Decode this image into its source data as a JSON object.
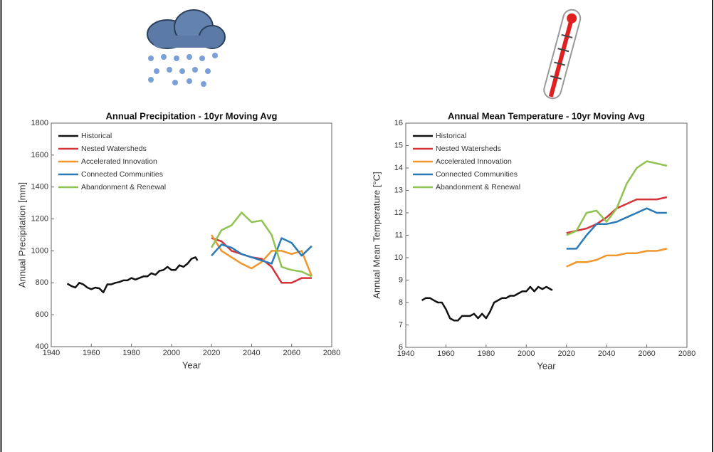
{
  "chart_data": [
    {
      "type": "line",
      "title": "Annual Precipitation - 10yr Moving Avg",
      "x_label": "Year",
      "y_label": "Annual Precipitation [mm]",
      "xlim": [
        1940,
        2080
      ],
      "xticks": [
        1940,
        1960,
        1980,
        2000,
        2020,
        2040,
        2060,
        2080
      ],
      "ylim": [
        400,
        1800
      ],
      "yticks": [
        400,
        600,
        800,
        1000,
        1200,
        1400,
        1600,
        1800
      ],
      "legend": "upper-left",
      "series": [
        {
          "name": "Historical",
          "color": "#111111",
          "x": [
            1948,
            1950,
            1952,
            1954,
            1956,
            1958,
            1960,
            1962,
            1964,
            1966,
            1968,
            1970,
            1972,
            1974,
            1976,
            1978,
            1980,
            1982,
            1984,
            1986,
            1988,
            1990,
            1992,
            1994,
            1996,
            1998,
            2000,
            2002,
            2004,
            2006,
            2008,
            2010,
            2012,
            2013
          ],
          "values": [
            795,
            780,
            770,
            800,
            790,
            770,
            760,
            770,
            765,
            740,
            790,
            790,
            800,
            805,
            815,
            815,
            830,
            820,
            830,
            840,
            840,
            860,
            850,
            875,
            880,
            900,
            880,
            880,
            910,
            900,
            920,
            950,
            960,
            940
          ]
        },
        {
          "name": "Nested Watersheds",
          "color": "#d6323a",
          "x": [
            2020,
            2025,
            2030,
            2035,
            2040,
            2045,
            2050,
            2055,
            2060,
            2065,
            2070
          ],
          "values": [
            1080,
            1060,
            1000,
            980,
            960,
            950,
            900,
            800,
            800,
            830,
            830
          ]
        },
        {
          "name": "Accelerated Innovation",
          "color": "#f0962a",
          "x": [
            2020,
            2025,
            2030,
            2035,
            2040,
            2045,
            2050,
            2055,
            2060,
            2065,
            2070
          ],
          "values": [
            1100,
            1000,
            960,
            920,
            890,
            930,
            1000,
            1000,
            980,
            1000,
            840
          ]
        },
        {
          "name": "Connected Communities",
          "color": "#2a7bb8",
          "x": [
            2020,
            2025,
            2030,
            2035,
            2040,
            2045,
            2050,
            2055,
            2060,
            2065,
            2070
          ],
          "values": [
            970,
            1040,
            1020,
            980,
            960,
            940,
            920,
            1080,
            1050,
            970,
            1030
          ]
        },
        {
          "name": "Abandonment & Renewal",
          "color": "#8fc250",
          "x": [
            2020,
            2025,
            2030,
            2035,
            2040,
            2045,
            2050,
            2055,
            2060,
            2065,
            2070
          ],
          "values": [
            1020,
            1130,
            1160,
            1240,
            1180,
            1190,
            1100,
            900,
            880,
            870,
            840
          ]
        }
      ]
    },
    {
      "type": "line",
      "title": "Annual Mean Temperature - 10yr Moving Avg",
      "x_label": "Year",
      "y_label": "Annual Mean Temperature [°C]",
      "xlim": [
        1940,
        2080
      ],
      "xticks": [
        1940,
        1960,
        1980,
        2000,
        2020,
        2040,
        2060,
        2080
      ],
      "ylim": [
        6,
        16
      ],
      "yticks": [
        6,
        7,
        8,
        9,
        10,
        11,
        12,
        13,
        14,
        15,
        16
      ],
      "legend": "upper-left",
      "series": [
        {
          "name": "Historical",
          "color": "#111111",
          "x": [
            1948,
            1950,
            1952,
            1954,
            1956,
            1958,
            1960,
            1962,
            1964,
            1966,
            1968,
            1970,
            1972,
            1974,
            1976,
            1978,
            1980,
            1982,
            1984,
            1986,
            1988,
            1990,
            1992,
            1994,
            1996,
            1998,
            2000,
            2002,
            2004,
            2006,
            2008,
            2010,
            2012,
            2013
          ],
          "values": [
            8.1,
            8.2,
            8.2,
            8.1,
            8.0,
            8.0,
            7.7,
            7.3,
            7.2,
            7.2,
            7.4,
            7.4,
            7.4,
            7.5,
            7.3,
            7.5,
            7.3,
            7.6,
            8.0,
            8.1,
            8.2,
            8.2,
            8.3,
            8.3,
            8.4,
            8.5,
            8.5,
            8.7,
            8.5,
            8.7,
            8.6,
            8.7,
            8.6,
            8.55
          ]
        },
        {
          "name": "Nested Watersheds",
          "color": "#d6323a",
          "x": [
            2020,
            2025,
            2030,
            2035,
            2040,
            2045,
            2050,
            2055,
            2060,
            2065,
            2070
          ],
          "values": [
            11.1,
            11.2,
            11.3,
            11.5,
            11.8,
            12.2,
            12.4,
            12.6,
            12.6,
            12.6,
            12.7
          ]
        },
        {
          "name": "Accelerated Innovation",
          "color": "#f0962a",
          "x": [
            2020,
            2025,
            2030,
            2035,
            2040,
            2045,
            2050,
            2055,
            2060,
            2065,
            2070
          ],
          "values": [
            9.6,
            9.8,
            9.8,
            9.9,
            10.1,
            10.1,
            10.2,
            10.2,
            10.3,
            10.3,
            10.4
          ]
        },
        {
          "name": "Connected Communities",
          "color": "#2a7bb8",
          "x": [
            2020,
            2025,
            2030,
            2035,
            2040,
            2045,
            2050,
            2055,
            2060,
            2065,
            2070
          ],
          "values": [
            10.4,
            10.4,
            11.0,
            11.5,
            11.5,
            11.6,
            11.8,
            12.0,
            12.2,
            12.0,
            12.0
          ]
        },
        {
          "name": "Abandonment & Renewal",
          "color": "#8fc250",
          "x": [
            2020,
            2025,
            2030,
            2035,
            2040,
            2045,
            2050,
            2055,
            2060,
            2065,
            2070
          ],
          "values": [
            11.0,
            11.2,
            12.0,
            12.1,
            11.6,
            12.2,
            13.3,
            14.0,
            14.3,
            14.2,
            14.1
          ]
        }
      ]
    }
  ]
}
